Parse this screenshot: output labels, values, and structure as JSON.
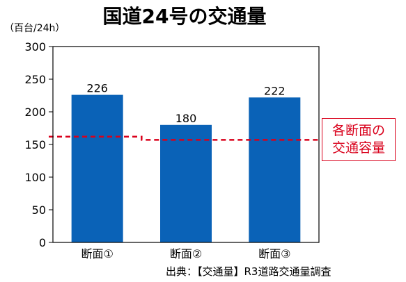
{
  "header": {
    "title": "国道24号の交通量",
    "unit": "（百台/24h）"
  },
  "footer": {
    "source": "出典：【交通量】R3道路交通量調査"
  },
  "chart_data": {
    "type": "bar",
    "title": "国道24号の交通量",
    "ylabel": "（百台/24h）",
    "categories": [
      "断面①",
      "断面②",
      "断面③"
    ],
    "values": [
      226,
      180,
      222
    ],
    "data_labels": [
      "226",
      "180",
      "222"
    ],
    "ylim": [
      0,
      300
    ],
    "yticks": [
      0,
      50,
      100,
      150,
      200,
      250,
      300
    ],
    "ytick_labels": [
      "0",
      "50",
      "100",
      "150",
      "200",
      "250",
      "300"
    ],
    "grid": false,
    "bar_color": "#0a62b7",
    "capacity_line": {
      "label_lines": [
        "各断面の",
        "交通容量"
      ],
      "segments": [
        {
          "from": 0,
          "to": 1.0,
          "value": 162
        },
        {
          "from": 1.0,
          "to": 3.0,
          "value": 157
        }
      ],
      "color": "#d9001b",
      "style": "dashed"
    }
  }
}
